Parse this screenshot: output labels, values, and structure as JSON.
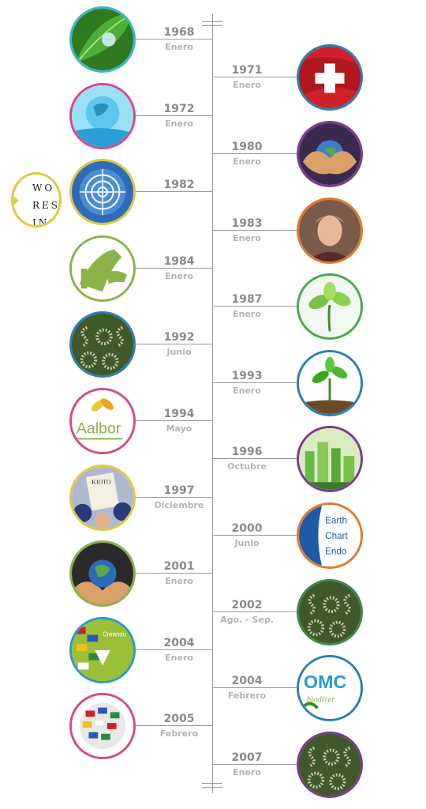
{
  "popout": {
    "text": "WO\nRESC\nINS",
    "icon": "institute-logo-card"
  },
  "events": [
    {
      "year": "1968",
      "month": "Enero",
      "side": "left",
      "color": "#3bb5d6",
      "icon": "water-drop-leaf-image"
    },
    {
      "year": "1971",
      "month": "Enero",
      "side": "right",
      "color": "#2b7fb5",
      "icon": "swiss-flag-image"
    },
    {
      "year": "1972",
      "month": "Enero",
      "side": "left",
      "color": "#d54a8a",
      "icon": "water-globe-image"
    },
    {
      "year": "1980",
      "month": "Enero",
      "side": "right",
      "color": "#7a3c8a",
      "icon": "hands-globe-image"
    },
    {
      "year": "1982",
      "month": "",
      "side": "left",
      "color": "#e0c940",
      "icon": "un-emblem-image"
    },
    {
      "year": "1983",
      "month": "Enero",
      "side": "right",
      "color": "#e07a2a",
      "icon": "portrait-image"
    },
    {
      "year": "1984",
      "month": "Enero",
      "side": "left",
      "color": "#8ab34a",
      "icon": "handshake-logo-image"
    },
    {
      "year": "1987",
      "month": "Enero",
      "side": "right",
      "color": "#4aa84a",
      "icon": "green-sprout-image"
    },
    {
      "year": "1992",
      "month": "Junio",
      "side": "left",
      "color": "#2b7fb5",
      "icon": "crowd-sos-image"
    },
    {
      "year": "1993",
      "month": "Enero",
      "side": "right",
      "color": "#2b7fb5",
      "icon": "seedling-image"
    },
    {
      "year": "1994",
      "month": "Mayo",
      "side": "left",
      "color": "#d54a8a",
      "icon": "aalborg-charter-image"
    },
    {
      "year": "1996",
      "month": "Octubre",
      "side": "right",
      "color": "#7a3c8a",
      "icon": "green-city-image"
    },
    {
      "year": "1997",
      "month": "Diciembre",
      "side": "left",
      "color": "#e0c940",
      "icon": "kyoto-document-image"
    },
    {
      "year": "2000",
      "month": "Junio",
      "side": "right",
      "color": "#e07a2a",
      "icon": "earth-charter-image"
    },
    {
      "year": "2001",
      "month": "Enero",
      "side": "left",
      "color": "#8ab34a",
      "icon": "hands-earth-image"
    },
    {
      "year": "2002",
      "month": "Ago. - Sep.",
      "side": "right",
      "color": "#3b8a4a",
      "icon": "crowd-sos-image"
    },
    {
      "year": "2004",
      "month": "Enero",
      "side": "left",
      "color": "#2b9ac4",
      "icon": "flags-heart-image"
    },
    {
      "year": "2004",
      "month": "Febrero",
      "side": "right",
      "color": "#2b7fb5",
      "icon": "biodiversity-logo-image"
    },
    {
      "year": "2005",
      "month": "Febrero",
      "side": "left",
      "color": "#d54a8a",
      "icon": "flags-sphere-image"
    },
    {
      "year": "2007",
      "month": "Enero",
      "side": "right",
      "color": "#7a3c8a",
      "icon": "crowd-sos-image"
    }
  ]
}
